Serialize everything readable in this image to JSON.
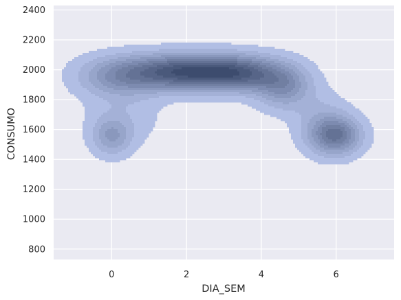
{
  "chart_data": {
    "type": "kde-density-filled-contour",
    "title": "",
    "xlabel": "DIA_SEM",
    "ylabel": "CONSUMO",
    "xlim": [
      -1.55,
      7.55
    ],
    "ylim": [
      730,
      2430
    ],
    "xticks": [
      0,
      2,
      4,
      6
    ],
    "yticks": [
      800,
      1000,
      1200,
      1400,
      1600,
      1800,
      2000,
      2200,
      2400
    ],
    "grid": true,
    "legend": "none",
    "colors": {
      "background": "#eaeaf2",
      "grid": "#ffffff",
      "density_low": "#b1bee4",
      "density_high": "#3d4c6e"
    },
    "levels": 10,
    "density_components": [
      {
        "x": 0.0,
        "y": 1555,
        "sx": 0.35,
        "sy": 85,
        "w": 0.55
      },
      {
        "x": 0.2,
        "y": 1960,
        "sx": 0.75,
        "sy": 90,
        "w": 0.7
      },
      {
        "x": 1.5,
        "y": 1985,
        "sx": 0.8,
        "sy": 80,
        "w": 1.0
      },
      {
        "x": 2.6,
        "y": 1985,
        "sx": 0.8,
        "sy": 80,
        "w": 1.05
      },
      {
        "x": 3.6,
        "y": 1975,
        "sx": 0.7,
        "sy": 80,
        "w": 0.95
      },
      {
        "x": 4.6,
        "y": 1890,
        "sx": 0.5,
        "sy": 100,
        "w": 0.75
      },
      {
        "x": 6.0,
        "y": 1560,
        "sx": 0.45,
        "sy": 85,
        "w": 1.05
      },
      {
        "x": 5.6,
        "y": 1650,
        "sx": 0.5,
        "sy": 130,
        "w": 0.3
      },
      {
        "x": 0.3,
        "y": 1700,
        "sx": 0.7,
        "sy": 150,
        "w": 0.2
      }
    ]
  }
}
